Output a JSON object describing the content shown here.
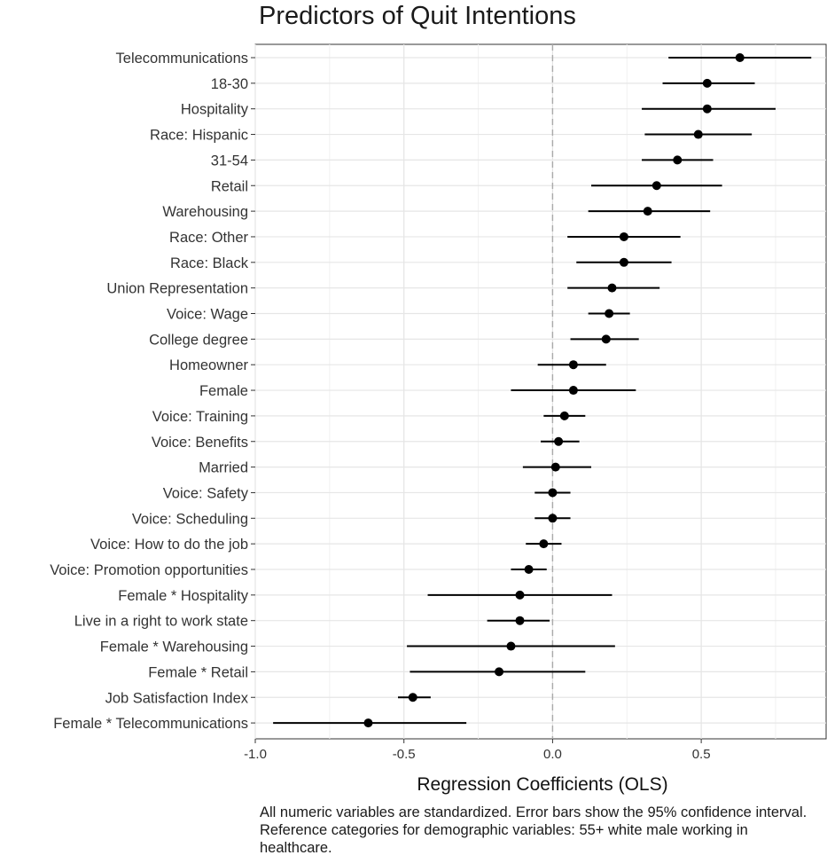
{
  "chart_data": {
    "type": "scatter",
    "title": "Predictors of Quit Intentions",
    "xlabel": "Regression Coefficients (OLS)",
    "ylabel": "",
    "xlim": [
      -1.0,
      0.92
    ],
    "xticks": [
      -1.0,
      -0.5,
      0.0,
      0.5
    ],
    "xtick_labels": [
      "-1.0",
      "-0.5",
      "0.0",
      "0.5"
    ],
    "reference_line": 0.0,
    "grid": "on",
    "note": "All numeric variables are standardized. Error bars show the 95% confidence interval. Reference categories for demographic variables: 55+ white male working in healthcare.",
    "categories": [
      "Telecommunications",
      "18-30",
      "Hospitality",
      "Race: Hispanic",
      "31-54",
      "Retail",
      "Warehousing",
      "Race: Other",
      "Race: Black",
      "Union Representation",
      "Voice: Wage",
      "College degree",
      "Homeowner",
      "Female",
      "Voice: Training",
      "Voice: Benefits",
      "Married",
      "Voice: Safety",
      "Voice: Scheduling",
      "Voice: How to do the job",
      "Voice: Promotion opportunities",
      "Female * Hospitality",
      "Live in a right to work state",
      "Female * Warehousing",
      "Female * Retail",
      "Job Satisfaction Index",
      "Female * Telecommunications"
    ],
    "estimates": [
      0.63,
      0.52,
      0.52,
      0.49,
      0.42,
      0.35,
      0.32,
      0.24,
      0.24,
      0.2,
      0.19,
      0.18,
      0.07,
      0.07,
      0.04,
      0.02,
      0.01,
      0.0,
      0.0,
      -0.03,
      -0.08,
      -0.11,
      -0.11,
      -0.14,
      -0.18,
      -0.47,
      -0.62
    ],
    "ci_low": [
      0.39,
      0.37,
      0.3,
      0.31,
      0.3,
      0.13,
      0.12,
      0.05,
      0.08,
      0.05,
      0.12,
      0.06,
      -0.05,
      -0.14,
      -0.03,
      -0.04,
      -0.1,
      -0.06,
      -0.06,
      -0.09,
      -0.14,
      -0.42,
      -0.22,
      -0.49,
      -0.48,
      -0.52,
      -0.94
    ],
    "ci_high": [
      0.87,
      0.68,
      0.75,
      0.67,
      0.54,
      0.57,
      0.53,
      0.43,
      0.4,
      0.36,
      0.26,
      0.29,
      0.18,
      0.28,
      0.11,
      0.09,
      0.13,
      0.06,
      0.06,
      0.03,
      -0.02,
      0.2,
      -0.01,
      0.21,
      0.11,
      -0.41,
      -0.29
    ]
  }
}
